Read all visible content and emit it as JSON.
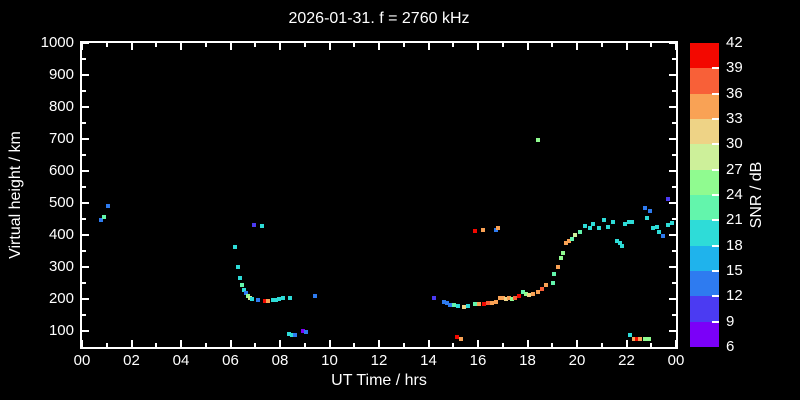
{
  "figure": {
    "background": "#000000",
    "foreground": "#ffffff"
  },
  "chart_data": {
    "type": "scatter",
    "title": "2026-01-31. f = 2760 kHz",
    "xlabel": "UT Time / hrs",
    "ylabel": "Virtual height / km",
    "xlim": [
      0,
      24
    ],
    "ylim": [
      50,
      1000
    ],
    "grid": false,
    "x_major_ticks": {
      "values": [
        0,
        2,
        4,
        6,
        8,
        10,
        12,
        14,
        16,
        18,
        20,
        22,
        24
      ],
      "labels": [
        "00",
        "02",
        "04",
        "06",
        "08",
        "10",
        "12",
        "14",
        "16",
        "18",
        "20",
        "22",
        "00"
      ]
    },
    "x_minor_values": [
      1,
      3,
      5,
      7,
      9,
      11,
      13,
      15,
      17,
      19,
      21,
      23
    ],
    "y_major_ticks": {
      "values": [
        100,
        200,
        300,
        400,
        500,
        600,
        700,
        800,
        900,
        1000
      ],
      "labels": [
        "100",
        "200",
        "300",
        "400",
        "500",
        "600",
        "700",
        "800",
        "900",
        "1000"
      ]
    },
    "y_minor_values": [
      150,
      250,
      350,
      450,
      550,
      650,
      750,
      850,
      950
    ],
    "colorbar": {
      "label": "SNR / dB",
      "min": 6,
      "max": 42,
      "step": 3,
      "tick_labels": [
        "6",
        "9",
        "12",
        "15",
        "18",
        "21",
        "24",
        "27",
        "30",
        "33",
        "36",
        "39",
        "42"
      ],
      "colors": [
        "#7b00f8",
        "#4b3bf2",
        "#2e7bf0",
        "#1fb3ec",
        "#2edcd8",
        "#63f5ac",
        "#90fb90",
        "#cdf09a",
        "#eed386",
        "#f9a255",
        "#f86038",
        "#f30800"
      ]
    },
    "points_format": [
      "ut_hours",
      "virtual_height_km",
      "snr_db"
    ],
    "points": [
      [
        0.77,
        447,
        13.5
      ],
      [
        0.89,
        456,
        22.5
      ],
      [
        1.05,
        491,
        13.5
      ],
      [
        6.18,
        362,
        19.5
      ],
      [
        6.3,
        300,
        19.5
      ],
      [
        6.38,
        266,
        19.5
      ],
      [
        6.46,
        244,
        22.5
      ],
      [
        6.55,
        228,
        19.5
      ],
      [
        6.63,
        219,
        13.5
      ],
      [
        6.71,
        209,
        25.5
      ],
      [
        6.79,
        203,
        28.5
      ],
      [
        6.87,
        200,
        19.5
      ],
      [
        6.95,
        431,
        10.5
      ],
      [
        7.11,
        197,
        13.5
      ],
      [
        7.27,
        428,
        19.5
      ],
      [
        7.39,
        194,
        40.5
      ],
      [
        7.52,
        194,
        34.5
      ],
      [
        7.72,
        197,
        19.5
      ],
      [
        7.84,
        197,
        19.5
      ],
      [
        7.96,
        200,
        19.5
      ],
      [
        8.12,
        203,
        19.5
      ],
      [
        8.36,
        91,
        19.5
      ],
      [
        8.4,
        203,
        19.5
      ],
      [
        8.48,
        88,
        19.5
      ],
      [
        8.61,
        88,
        13.5
      ],
      [
        8.93,
        100,
        7.5
      ],
      [
        9.05,
        97,
        13.5
      ],
      [
        9.41,
        209,
        13.5
      ],
      [
        14.22,
        203,
        10.5
      ],
      [
        14.63,
        191,
        13.5
      ],
      [
        14.75,
        188,
        13.5
      ],
      [
        14.87,
        181,
        13.5
      ],
      [
        15.03,
        181,
        22.5
      ],
      [
        15.15,
        81,
        40.5
      ],
      [
        15.19,
        178,
        19.5
      ],
      [
        15.31,
        75,
        34.5
      ],
      [
        15.43,
        175,
        31.5
      ],
      [
        15.6,
        178,
        19.5
      ],
      [
        15.88,
        184,
        22.5
      ],
      [
        15.88,
        413,
        40.5
      ],
      [
        16.04,
        184,
        34.5
      ],
      [
        16.2,
        416,
        34.5
      ],
      [
        16.24,
        184,
        40.5
      ],
      [
        16.4,
        188,
        37.5
      ],
      [
        16.57,
        188,
        34.5
      ],
      [
        16.73,
        191,
        34.5
      ],
      [
        16.73,
        416,
        13.5
      ],
      [
        16.81,
        422,
        34.5
      ],
      [
        16.89,
        203,
        34.5
      ],
      [
        17.01,
        203,
        34.5
      ],
      [
        17.13,
        200,
        31.5
      ],
      [
        17.25,
        203,
        34.5
      ],
      [
        17.37,
        200,
        25.5
      ],
      [
        17.49,
        203,
        37.5
      ],
      [
        17.66,
        209,
        40.5
      ],
      [
        17.82,
        222,
        22.5
      ],
      [
        17.94,
        216,
        25.5
      ],
      [
        18.06,
        212,
        31.5
      ],
      [
        18.22,
        216,
        34.5
      ],
      [
        18.42,
        222,
        34.5
      ],
      [
        18.42,
        697,
        25.5
      ],
      [
        18.59,
        231,
        37.5
      ],
      [
        18.75,
        244,
        34.5
      ],
      [
        19.03,
        250,
        22.5
      ],
      [
        19.07,
        278,
        22.5
      ],
      [
        19.23,
        300,
        34.5
      ],
      [
        19.35,
        328,
        25.5
      ],
      [
        19.43,
        344,
        25.5
      ],
      [
        19.56,
        375,
        34.5
      ],
      [
        19.68,
        381,
        34.5
      ],
      [
        19.8,
        387,
        22.5
      ],
      [
        19.92,
        400,
        28.5
      ],
      [
        20.12,
        409,
        22.5
      ],
      [
        20.32,
        428,
        19.5
      ],
      [
        20.53,
        422,
        19.5
      ],
      [
        20.65,
        434,
        19.5
      ],
      [
        20.89,
        422,
        19.5
      ],
      [
        21.09,
        447,
        19.5
      ],
      [
        21.25,
        425,
        19.5
      ],
      [
        21.45,
        441,
        19.5
      ],
      [
        21.62,
        381,
        19.5
      ],
      [
        21.74,
        375,
        19.5
      ],
      [
        21.82,
        366,
        19.5
      ],
      [
        21.94,
        434,
        19.5
      ],
      [
        22.1,
        441,
        19.5
      ],
      [
        22.14,
        88,
        19.5
      ],
      [
        22.22,
        441,
        19.5
      ],
      [
        22.3,
        75,
        34.5
      ],
      [
        22.42,
        75,
        40.5
      ],
      [
        22.55,
        75,
        34.5
      ],
      [
        22.75,
        75,
        25.5
      ],
      [
        22.75,
        484,
        13.5
      ],
      [
        22.83,
        453,
        19.5
      ],
      [
        22.91,
        75,
        25.5
      ],
      [
        22.95,
        475,
        13.5
      ],
      [
        23.07,
        422,
        19.5
      ],
      [
        23.23,
        425,
        19.5
      ],
      [
        23.31,
        409,
        19.5
      ],
      [
        23.47,
        397,
        13.5
      ],
      [
        23.68,
        431,
        19.5
      ],
      [
        23.68,
        512,
        10.5
      ],
      [
        23.84,
        438,
        19.5
      ]
    ]
  }
}
